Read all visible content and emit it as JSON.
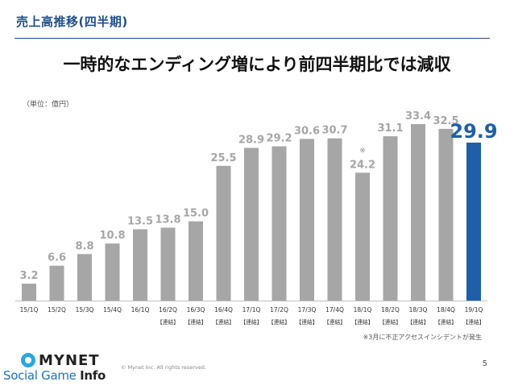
{
  "slide": {
    "section_title": "売上高推移(四半期)",
    "headline": "一時的なエンディング増により前四半期比では減収",
    "unit_label": "（単位：億円）",
    "footnote": "※3月に不正アクセスインシデントが発生",
    "copyright": "© Mynet Inc. All rights reserved.",
    "page_number": "5"
  },
  "logo": {
    "brand": "MYNET",
    "site_name_part1": "Social Game ",
    "site_name_part2": "Info"
  },
  "colors": {
    "title_blue": "#1f4e8c",
    "bar_gray": "#a6a6a6",
    "bar_highlight": "#1f5fa6",
    "label_gray": "#a6a6a6"
  },
  "chart_data": {
    "type": "bar",
    "categories": [
      "15/1Q",
      "15/2Q",
      "15/3Q",
      "15/4Q",
      "16/1Q",
      "16/2Q",
      "16/3Q",
      "16/4Q",
      "17/1Q",
      "17/2Q",
      "17/3Q",
      "17/4Q",
      "18/1Q",
      "18/2Q",
      "18/3Q",
      "18/4Q",
      "19/1Q"
    ],
    "sublabels": [
      "",
      "",
      "",
      "",
      "",
      "【連結】",
      "【連結】",
      "【連結】",
      "【連結】",
      "【連結】",
      "【連結】",
      "【連結】",
      "【連結】",
      "【連結】",
      "【連結】",
      "【連結】",
      "【連結】"
    ],
    "values": [
      3.2,
      6.6,
      8.8,
      10.8,
      13.5,
      13.8,
      15.0,
      25.5,
      28.9,
      29.2,
      30.6,
      30.7,
      24.2,
      31.1,
      33.4,
      32.5,
      29.9
    ],
    "value_labels": [
      "3.2",
      "6.6",
      "8.8",
      "10.8",
      "13.5",
      "13.8",
      "15.0",
      "25.5",
      "28.9",
      "29.2",
      "30.6",
      "30.7",
      "24.2",
      "31.1",
      "33.4",
      "32.5",
      "29.9"
    ],
    "highlight_index": 16,
    "annotation_marks": {
      "12": "※"
    },
    "ylim": [
      0,
      37
    ],
    "grid": false,
    "legend": "none"
  }
}
